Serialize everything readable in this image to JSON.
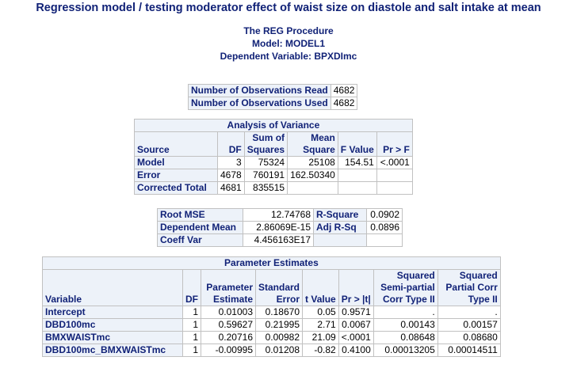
{
  "title": "Regression model / testing moderator effect of waist size on diastole and salt intake at mean",
  "procedure": {
    "name": "The REG Procedure",
    "model": "Model: MODEL1",
    "dependent": "Dependent Variable: BPXDImc"
  },
  "observations": {
    "rows": [
      {
        "label": "Number of Observations Read",
        "value": "4682"
      },
      {
        "label": "Number of Observations Used",
        "value": "4682"
      }
    ]
  },
  "anova": {
    "caption": "Analysis of Variance",
    "headers": {
      "source": "Source",
      "df": "DF",
      "ss": "Sum of Squares",
      "ms": "Mean Square",
      "f": "F Value",
      "p": "Pr > F"
    },
    "rows": [
      {
        "source": "Model",
        "df": "3",
        "ss": "75324",
        "ms": "25108",
        "f": "154.51",
        "p": "<.0001"
      },
      {
        "source": "Error",
        "df": "4678",
        "ss": "760191",
        "ms": "162.50340",
        "f": "",
        "p": ""
      },
      {
        "source": "Corrected Total",
        "df": "4681",
        "ss": "835515",
        "ms": "",
        "f": "",
        "p": ""
      }
    ]
  },
  "fit": {
    "rows": [
      {
        "label1": "Root MSE",
        "value1": "12.74768",
        "label2": "R-Square",
        "value2": "0.0902"
      },
      {
        "label1": "Dependent Mean",
        "value1": "2.86069E-15",
        "label2": "Adj R-Sq",
        "value2": "0.0896"
      },
      {
        "label1": "Coeff Var",
        "value1": "4.456163E17",
        "label2": "",
        "value2": ""
      }
    ]
  },
  "params": {
    "caption": "Parameter Estimates",
    "headers": {
      "variable": "Variable",
      "df": "DF",
      "estimate": "Parameter Estimate",
      "se": "Standard Error",
      "t": "t Value",
      "p": "Pr > |t|",
      "semi": "Squared Semi-partial Corr Type II",
      "partial": "Squared Partial Corr Type II"
    },
    "rows": [
      {
        "variable": "Intercept",
        "df": "1",
        "estimate": "0.01003",
        "se": "0.18670",
        "t": "0.05",
        "p": "0.9571",
        "semi": ".",
        "partial": "."
      },
      {
        "variable": "DBD100mc",
        "df": "1",
        "estimate": "0.59627",
        "se": "0.21995",
        "t": "2.71",
        "p": "0.0067",
        "semi": "0.00143",
        "partial": "0.00157"
      },
      {
        "variable": "BMXWAISTmc",
        "df": "1",
        "estimate": "0.20716",
        "se": "0.00982",
        "t": "21.09",
        "p": "<.0001",
        "semi": "0.08648",
        "partial": "0.08680"
      },
      {
        "variable": "DBD100mc_BMXWAISTmc",
        "df": "1",
        "estimate": "-0.00995",
        "se": "0.01208",
        "t": "-0.82",
        "p": "0.4100",
        "semi": "0.00013205",
        "partial": "0.00014511"
      }
    ]
  }
}
